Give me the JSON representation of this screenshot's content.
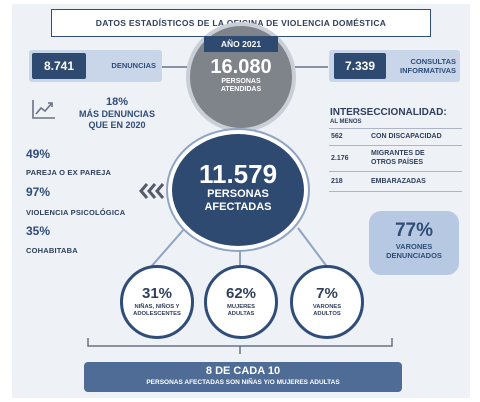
{
  "header": {
    "title": "DATOS ESTADÍSTICOS DE LA OFICINA DE VIOLENCIA DOMÉSTICA"
  },
  "top": {
    "year": "AÑO 2021",
    "attended_number": "16.080",
    "attended_label_1": "PERSONAS",
    "attended_label_2": "ATENDIDAS",
    "denuncias_number": "8.741",
    "denuncias_label": "DENUNCIAS",
    "consultas_number": "7.339",
    "consultas_label_1": "CONSULTAS",
    "consultas_label_2": "INFORMATIVAS"
  },
  "trend": {
    "icon": "trend-up-chart-icon",
    "pct": "18%",
    "label_1": "MÁS DENUNCIAS",
    "label_2": "QUE EN 2020"
  },
  "left_stats": [
    {
      "pct": "49%",
      "label": "PAREJA O EX PAREJA"
    },
    {
      "pct": "97%",
      "label": "VIOLENCIA PSICOLÓGICA"
    },
    {
      "pct": "35%",
      "label": "COHABITABA"
    }
  ],
  "arrows_icon": "triple-chevron-left-icon",
  "center": {
    "number": "11.579",
    "label_1": "PERSONAS",
    "label_2": "AFECTADAS"
  },
  "intersectionality": {
    "title": "INTERSECCIONALIDAD:",
    "subtitle": "AL MENOS",
    "rows": [
      {
        "num": "562",
        "label_1": "CON DISCAPACIDAD",
        "label_2": ""
      },
      {
        "num": "2.176",
        "label_1": "MIGRANTES DE",
        "label_2": "OTROS PAÍSES"
      },
      {
        "num": "218",
        "label_1": "EMBARAZADAS",
        "label_2": ""
      }
    ]
  },
  "men_box": {
    "pct": "77%",
    "label_1": "VARONES",
    "label_2": "DENUNCIADOS"
  },
  "breakdown": [
    {
      "pct": "31%",
      "label_1": "NIÑAS, NIÑOS Y",
      "label_2": "ADOLESCENTES"
    },
    {
      "pct": "62%",
      "label_1": "MUJERES",
      "label_2": "ADULTAS"
    },
    {
      "pct": "7%",
      "label_1": "VARONES",
      "label_2": "ADULTOS"
    }
  ],
  "footer": {
    "headline": "8 DE CADA 10",
    "subline": "PERSONAS AFECTADAS SON NIÑAS Y/O MUJERES ADULTAS"
  },
  "colors": {
    "navy": "#2e4a70",
    "light_blue": "#c9d6ea",
    "panel": "#eef1f6",
    "gray_circle": "#7f838a"
  }
}
